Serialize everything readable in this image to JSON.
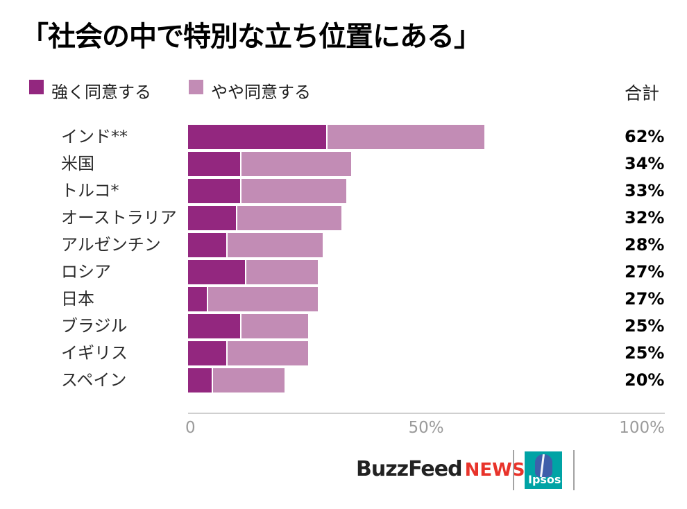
{
  "title": "「社会の中で特別な立ち位置にある」",
  "legend": {
    "strong": {
      "label": "強く同意する",
      "color": "#93277F"
    },
    "somewhat": {
      "label": "やや同意する",
      "color": "#C28CB5"
    },
    "total_header": "合計"
  },
  "chart_data": {
    "type": "bar",
    "orientation": "horizontal",
    "stacked": true,
    "title": "「社会の中で特別な立ち位置にある」",
    "categories": [
      "インド**",
      "米国",
      "トルコ*",
      "オーストラリア",
      "アルゼンチン",
      "ロシア",
      "日本",
      "ブラジル",
      "イギリス",
      "スペイン"
    ],
    "series": [
      {
        "name": "強く同意する",
        "color": "#93277F",
        "values": [
          29,
          11,
          11,
          10,
          8,
          12,
          4,
          11,
          8,
          5
        ]
      },
      {
        "name": "やや同意する",
        "color": "#C28CB5",
        "values": [
          33,
          23,
          22,
          22,
          20,
          15,
          23,
          14,
          17,
          15
        ]
      }
    ],
    "totals": [
      62,
      34,
      33,
      32,
      28,
      27,
      27,
      25,
      25,
      20
    ],
    "totals_display": [
      "62%",
      "34%",
      "33%",
      "32%",
      "28%",
      "27%",
      "27%",
      "25%",
      "25%",
      "20%"
    ],
    "x_axis": {
      "range": [
        0,
        100
      ],
      "ticks": [
        "0",
        "50%",
        "100%"
      ],
      "grid": false
    },
    "legend_position": "top"
  },
  "footer": {
    "buzzfeed": "BuzzFeed",
    "news": "NEWS",
    "ipsos": "Ipsos",
    "colors": {
      "buzzfeed_black": "#222222",
      "news_red": "#E8332A",
      "ipsos_teal": "#00A3A5",
      "ipsos_blue": "#3E5FAA"
    }
  }
}
